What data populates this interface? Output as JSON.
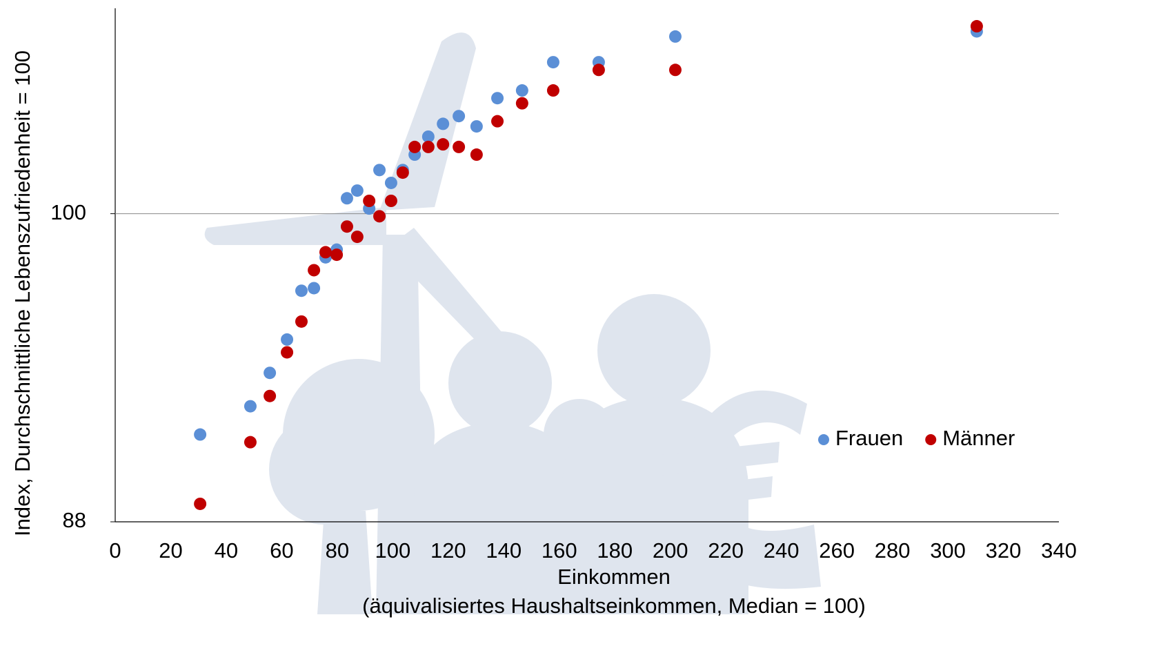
{
  "chart_data": {
    "type": "scatter",
    "y_label": "Index, Durchschnittliche Lebenszufriedenheit = 100",
    "x_label": "Einkommen",
    "x_sublabel": "(äquivalisiertes Haushaltseinkommen, Median = 100)",
    "x": [
      30.6,
      48.7,
      55.7,
      61.9,
      67.1,
      71.6,
      75.8,
      79.8,
      83.5,
      87.2,
      91.5,
      95.2,
      99.4,
      103.6,
      107.9,
      112.8,
      118.1,
      123.8,
      130.2,
      137.7,
      146.6,
      157.8,
      174.2,
      201.8,
      310.4
    ],
    "series": [
      {
        "name": "Frauen",
        "color": "#5b8fd6",
        "values": [
          91.4,
          92.5,
          93.8,
          95.1,
          97.0,
          97.1,
          98.3,
          98.6,
          100.6,
          100.9,
          100.2,
          101.7,
          101.2,
          101.7,
          102.3,
          103.0,
          103.5,
          103.8,
          103.4,
          104.5,
          104.8,
          105.9,
          105.9,
          106.9,
          107.1
        ]
      },
      {
        "name": "Männer",
        "color": "#c00000",
        "values": [
          88.7,
          91.1,
          92.9,
          94.6,
          95.8,
          97.8,
          98.5,
          98.4,
          99.5,
          99.1,
          100.5,
          99.9,
          100.5,
          101.6,
          102.6,
          102.6,
          102.7,
          102.6,
          102.3,
          103.6,
          104.3,
          104.8,
          105.6,
          105.6,
          107.3
        ]
      }
    ],
    "xlim": [
      0,
      340
    ],
    "xticks": [
      0,
      20,
      40,
      60,
      80,
      100,
      120,
      140,
      160,
      180,
      200,
      220,
      240,
      260,
      280,
      300,
      320,
      340
    ],
    "ylim": [
      88,
      108
    ],
    "yticks": [
      88,
      100
    ],
    "grid": true,
    "legend": "right"
  }
}
